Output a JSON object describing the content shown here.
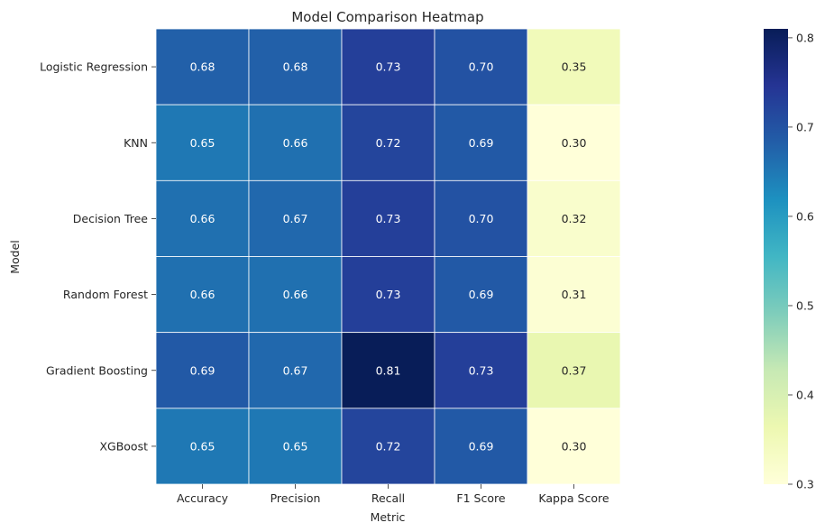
{
  "chart_data": {
    "type": "heatmap",
    "title": "Model Comparison Heatmap",
    "xlabel": "Metric",
    "ylabel": "Model",
    "x_categories": [
      "Accuracy",
      "Precision",
      "Recall",
      "F1 Score",
      "Kappa Score"
    ],
    "y_categories": [
      "Logistic Regression",
      "KNN",
      "Decision Tree",
      "Random Forest",
      "Gradient Boosting",
      "XGBoost"
    ],
    "values": [
      [
        0.68,
        0.68,
        0.73,
        0.7,
        0.35
      ],
      [
        0.65,
        0.66,
        0.72,
        0.69,
        0.3
      ],
      [
        0.66,
        0.67,
        0.73,
        0.7,
        0.32
      ],
      [
        0.66,
        0.66,
        0.73,
        0.69,
        0.31
      ],
      [
        0.69,
        0.67,
        0.81,
        0.73,
        0.37
      ],
      [
        0.65,
        0.65,
        0.72,
        0.69,
        0.3
      ]
    ],
    "cell_labels": [
      [
        "0.68",
        "0.68",
        "0.73",
        "0.70",
        "0.35"
      ],
      [
        "0.65",
        "0.66",
        "0.72",
        "0.69",
        "0.30"
      ],
      [
        "0.66",
        "0.67",
        "0.73",
        "0.70",
        "0.32"
      ],
      [
        "0.66",
        "0.66",
        "0.73",
        "0.69",
        "0.31"
      ],
      [
        "0.69",
        "0.67",
        "0.81",
        "0.73",
        "0.37"
      ],
      [
        "0.65",
        "0.65",
        "0.72",
        "0.69",
        "0.30"
      ]
    ],
    "colormap": "YlGnBu",
    "colorbar": {
      "range": [
        0.3,
        0.81
      ],
      "ticks": [
        0.3,
        0.4,
        0.5,
        0.6,
        0.7,
        0.8
      ],
      "tick_labels": [
        "0.3",
        "0.4",
        "0.5",
        "0.6",
        "0.7",
        "0.8"
      ]
    },
    "grid": true
  }
}
